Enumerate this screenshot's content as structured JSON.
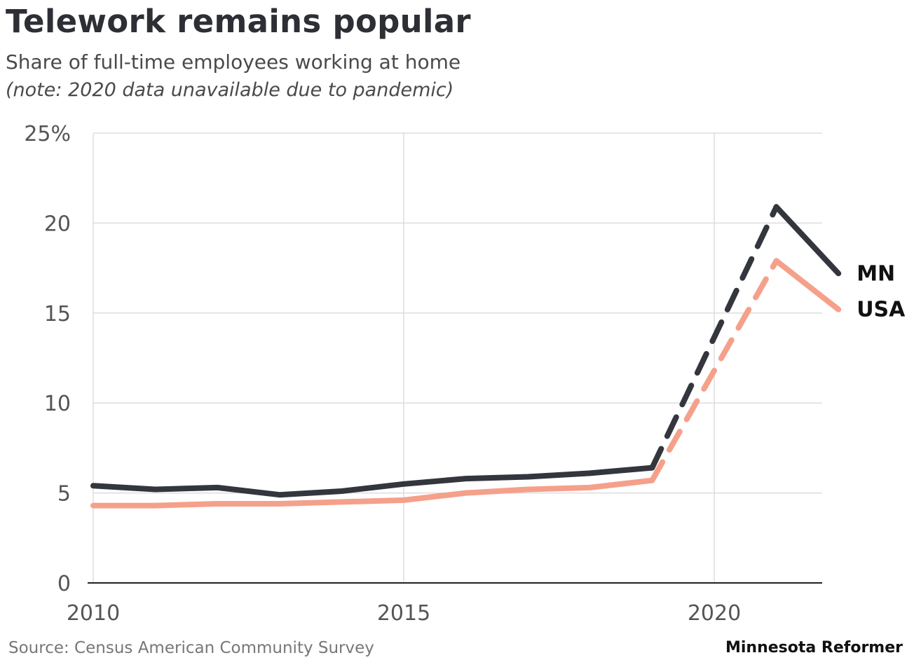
{
  "title": "Telework remains popular",
  "subtitle": "Share of full-time employees working at home",
  "note": "(note: 2020 data unavailable due to pandemic)",
  "source": "Source: Census American Community Survey",
  "credit": "Minnesota Reformer",
  "chart_data": {
    "type": "line",
    "title": "Telework remains popular",
    "subtitle": "Share of full-time employees working at home",
    "xlabel": "",
    "ylabel": "",
    "xlim": [
      2010,
      2022.5
    ],
    "ylim": [
      0,
      25
    ],
    "x_ticks": [
      2010,
      2015,
      2020
    ],
    "x_tick_labels": [
      "2010",
      "2015",
      "2020"
    ],
    "y_ticks": [
      0,
      5,
      10,
      15,
      20,
      25
    ],
    "y_tick_labels": [
      "0",
      "5",
      "10",
      "15",
      "20",
      "25%"
    ],
    "grid": true,
    "legend": "direct labels at line ends",
    "dashed_segment": [
      2019,
      2021
    ],
    "series": [
      {
        "name": "MN",
        "color": "#33363d",
        "x": [
          2010,
          2011,
          2012,
          2013,
          2014,
          2015,
          2016,
          2017,
          2018,
          2019,
          2021,
          2022
        ],
        "values": [
          5.4,
          5.2,
          5.3,
          4.9,
          5.1,
          5.5,
          5.8,
          5.9,
          6.1,
          6.4,
          20.9,
          17.2
        ]
      },
      {
        "name": "USA",
        "color": "#f5a08a",
        "x": [
          2010,
          2011,
          2012,
          2013,
          2014,
          2015,
          2016,
          2017,
          2018,
          2019,
          2021,
          2022
        ],
        "values": [
          4.3,
          4.3,
          4.4,
          4.4,
          4.5,
          4.6,
          5.0,
          5.2,
          5.3,
          5.7,
          17.9,
          15.2
        ]
      }
    ]
  }
}
